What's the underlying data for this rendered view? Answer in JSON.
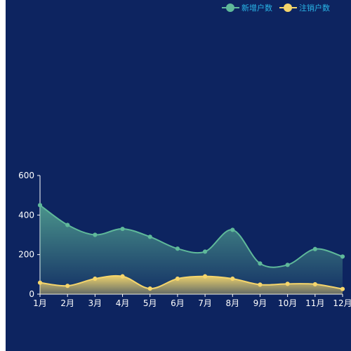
{
  "chart_data": {
    "type": "area",
    "categories": [
      "1月",
      "2月",
      "3月",
      "4月",
      "5月",
      "6月",
      "7月",
      "8月",
      "9月",
      "10月",
      "11月",
      "12月"
    ],
    "series": [
      {
        "name": "新增户数",
        "color": "#5fb99a",
        "values": [
          450,
          350,
          300,
          330,
          290,
          230,
          215,
          325,
          155,
          148,
          228,
          190
        ]
      },
      {
        "name": "注销户数",
        "color": "#f5d56b",
        "values": [
          58,
          42,
          78,
          90,
          28,
          78,
          90,
          78,
          48,
          52,
          50,
          26
        ]
      }
    ],
    "ylim": [
      0,
      600
    ],
    "yticks": [
      0,
      200,
      400,
      600
    ],
    "grid": false,
    "legend": "top-right"
  }
}
